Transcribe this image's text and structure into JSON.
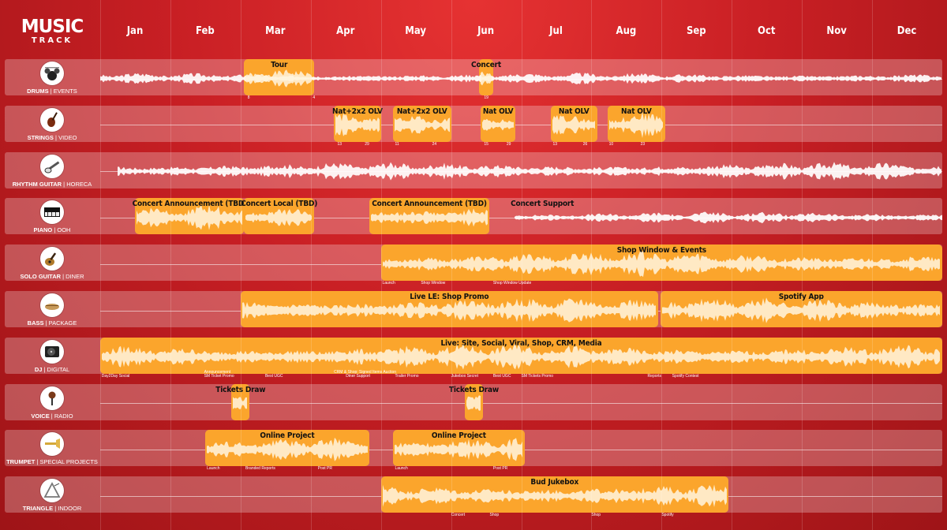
{
  "logo": {
    "line1": "MUSIC",
    "line2": "TRACK"
  },
  "months": [
    "Jan",
    "Feb",
    "Mar",
    "Apr",
    "May",
    "Jun",
    "Jul",
    "Aug",
    "Sep",
    "Oct",
    "Nov",
    "Dec"
  ],
  "colors": {
    "accent": "#fba52c",
    "background": "#c81f24",
    "wave": "#ffffff"
  },
  "tracks": [
    {
      "instrument": "DRUMS",
      "channel": "EVENTS",
      "icon": "drum-kit-icon",
      "wave": {
        "start": 0.0,
        "end": 12.0,
        "amp": 0.35
      },
      "segments": [
        {
          "label": "Tour",
          "start": 2.05,
          "end": 3.05
        },
        {
          "label": "Concert",
          "start": 5.4,
          "end": 5.6
        }
      ],
      "markers": [
        {
          "text": "8",
          "pos": 2.1
        },
        {
          "text": "4",
          "pos": 3.03
        },
        {
          "text": "19",
          "pos": 5.47
        }
      ]
    },
    {
      "instrument": "STRINGS",
      "channel": "VIDEO",
      "icon": "violin-icon",
      "wave": null,
      "segments": [
        {
          "label": "Nat+2x2 OLV",
          "start": 3.33,
          "end": 4.0
        },
        {
          "label": "Nat+2x2   OLV",
          "start": 4.17,
          "end": 5.0
        },
        {
          "label": "Nat      OLV",
          "start": 5.42,
          "end": 5.92
        },
        {
          "label": "Nat      OLV",
          "start": 6.42,
          "end": 7.08
        },
        {
          "label": "Nat      OLV",
          "start": 7.23,
          "end": 8.05
        }
      ],
      "markers": [
        {
          "text": "13",
          "pos": 3.38
        },
        {
          "text": "29",
          "pos": 3.77
        },
        {
          "text": "11",
          "pos": 4.2
        },
        {
          "text": "24",
          "pos": 4.73
        },
        {
          "text": "15",
          "pos": 5.47
        },
        {
          "text": "29",
          "pos": 5.79
        },
        {
          "text": "13",
          "pos": 6.45
        },
        {
          "text": "26",
          "pos": 6.88
        },
        {
          "text": "10",
          "pos": 7.25
        },
        {
          "text": "23",
          "pos": 7.7
        }
      ]
    },
    {
      "instrument": "RHYTHM GUITAR",
      "channel": "HORECA",
      "icon": "electric-guitar-icon",
      "wave": {
        "start": 0.25,
        "end": 12.0,
        "amp": 0.55
      },
      "segments": [],
      "markers": []
    },
    {
      "instrument": "PIANO",
      "channel": "OOH",
      "icon": "piano-keys-icon",
      "wave": {
        "start": 5.9,
        "end": 12.0,
        "amp": 0.35
      },
      "segments": [
        {
          "label": "Concert Announcement (TBD)",
          "start": 0.5,
          "end": 2.05
        },
        {
          "label": "Concert Local (TBD)",
          "start": 2.05,
          "end": 3.05
        },
        {
          "label": "Concert Announcement (TBD)",
          "start": 3.83,
          "end": 5.55
        }
      ],
      "texts": [
        {
          "label": "Concert Support",
          "pos": 6.3
        }
      ],
      "markers": []
    },
    {
      "instrument": "SOLO GUITAR",
      "channel": "DINER",
      "icon": "acoustic-guitar-icon",
      "wave": null,
      "segments": [
        {
          "label": "Shop Window & Events",
          "start": 4.0,
          "end": 12.0
        }
      ],
      "markers": [
        {
          "text": "Launch",
          "pos": 4.02
        },
        {
          "text": "Shop Window",
          "pos": 4.57
        },
        {
          "text": "Shop Window Update",
          "pos": 5.6
        }
      ]
    },
    {
      "instrument": "BASS",
      "channel": "PACKAGE",
      "icon": "bass-guitar-icon",
      "wave": null,
      "segments": [
        {
          "label": "Live LE: Shop Promo",
          "start": 2.0,
          "end": 7.95
        },
        {
          "label": "Spotify App",
          "start": 7.98,
          "end": 12.0
        }
      ],
      "markers": []
    },
    {
      "instrument": "DJ",
      "channel": "DIGITAL",
      "icon": "turntable-icon",
      "wave": null,
      "segments": [
        {
          "label": "Live: Site, Social, Viral, Shop, CRM, Media",
          "start": 0.0,
          "end": 12.0
        }
      ],
      "markers": [
        {
          "text": "Day2Day Social",
          "pos": 0.02
        },
        {
          "text": "Announcement",
          "pos": 1.48,
          "row": -1
        },
        {
          "text": "SM Ticket Promo",
          "pos": 1.48
        },
        {
          "text": "Best UGC",
          "pos": 2.35
        },
        {
          "text": "CRM & Shop: Signed Items Auction",
          "pos": 3.33,
          "row": -1
        },
        {
          "text": "Diner Support",
          "pos": 3.5
        },
        {
          "text": "Trailer Promo",
          "pos": 4.2
        },
        {
          "text": "Jukebox Secret",
          "pos": 5.0
        },
        {
          "text": "Best UGC",
          "pos": 5.6
        },
        {
          "text": "SM Tickets Promo",
          "pos": 6.0
        },
        {
          "text": "Reports",
          "pos": 7.8
        },
        {
          "text": "Spotify Contest",
          "pos": 8.15
        }
      ]
    },
    {
      "instrument": "VOICE",
      "channel": "RADIO",
      "icon": "microphone-icon",
      "wave": null,
      "segments": [
        {
          "label": "Tickets Draw",
          "start": 1.87,
          "end": 2.13
        },
        {
          "label": "Tickets Draw",
          "start": 5.2,
          "end": 5.45
        }
      ],
      "markers": []
    },
    {
      "instrument": "TRUMPET",
      "channel": "SPECIAL PROJECTS",
      "icon": "trumpet-icon",
      "wave": null,
      "segments": [
        {
          "label": "Online Project",
          "start": 1.5,
          "end": 3.83
        },
        {
          "label": "Online Project",
          "start": 4.17,
          "end": 6.05
        }
      ],
      "markers": [
        {
          "text": "Launch",
          "pos": 1.52
        },
        {
          "text": "Branded Reports",
          "pos": 2.07
        },
        {
          "text": "Post PR",
          "pos": 3.1
        },
        {
          "text": "Launch",
          "pos": 4.2
        },
        {
          "text": "Post PR",
          "pos": 5.6
        }
      ]
    },
    {
      "instrument": "TRIANGLE",
      "channel": "INDOOR",
      "icon": "triangle-instrument-icon",
      "wave": null,
      "segments": [
        {
          "label": "Bud Jukebox",
          "start": 4.0,
          "end": 8.95
        }
      ],
      "markers": [
        {
          "text": "Concert",
          "pos": 5.0
        },
        {
          "text": "Shop",
          "pos": 5.55
        },
        {
          "text": "Shop",
          "pos": 7.0
        },
        {
          "text": "Spotify",
          "pos": 8.0
        }
      ]
    }
  ]
}
